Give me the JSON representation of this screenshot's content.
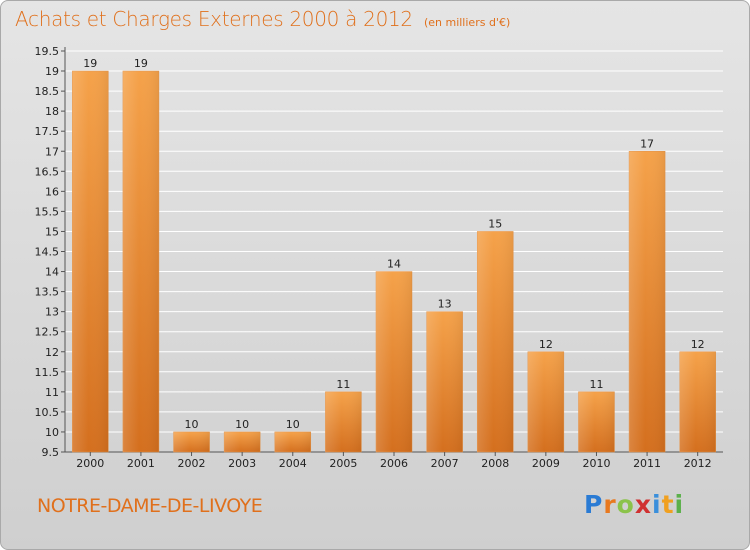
{
  "header": {
    "title": "Achats et Charges Externes 2000 à 2012",
    "unit": "(en milliers d'€)"
  },
  "footer": {
    "commune": "NOTRE-DAME-DE-LIVOYE",
    "brand": "Proxiti"
  },
  "colors": {
    "title": "#e0701c",
    "bar_top": "#f5a24a",
    "bar_bottom": "#d46f1e",
    "grid": "#ffffff",
    "background": "#dcdcdc"
  },
  "chart_data": {
    "type": "bar",
    "title": "Achats et Charges Externes 2000 à 2012",
    "subtitle": "(en milliers d'€)",
    "xlabel": "",
    "ylabel": "",
    "categories": [
      "2000",
      "2001",
      "2002",
      "2003",
      "2004",
      "2005",
      "2006",
      "2007",
      "2008",
      "2009",
      "2010",
      "2011",
      "2012"
    ],
    "values": [
      19,
      19,
      10,
      10,
      10,
      11,
      14,
      13,
      15,
      12,
      11,
      17,
      12
    ],
    "data_labels": [
      "19",
      "19",
      "10",
      "10",
      "10",
      "11",
      "14",
      "13",
      "15",
      "12",
      "11",
      "17",
      "12"
    ],
    "ylim": [
      9.5,
      19.5
    ],
    "yticks": [
      "9.5",
      "10",
      "10.5",
      "11",
      "11.5",
      "12",
      "12.5",
      "13",
      "13.5",
      "14",
      "14.5",
      "15",
      "15.5",
      "16",
      "16.5",
      "17",
      "17.5",
      "18",
      "18.5",
      "19",
      "19.5"
    ],
    "grid": true,
    "legend": "none"
  }
}
